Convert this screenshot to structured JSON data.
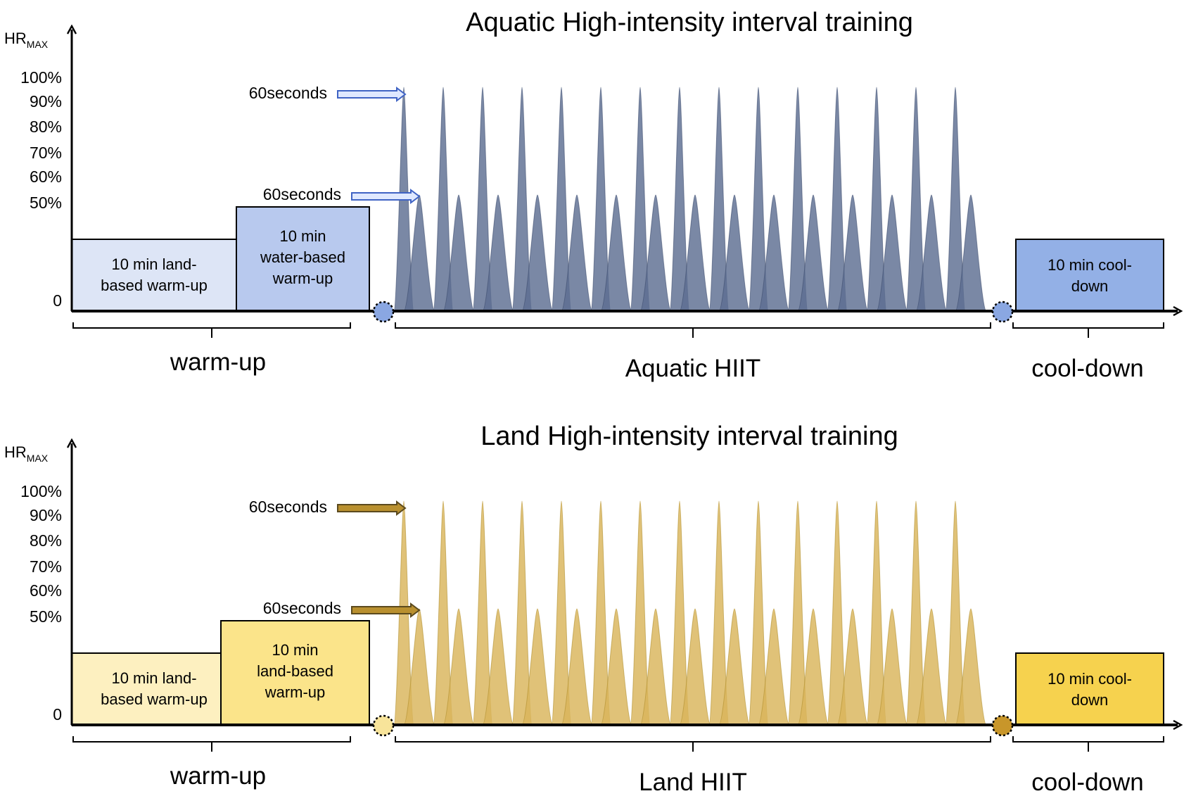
{
  "palette": {
    "aquatic": {
      "spike": "#5d6e91",
      "spike_edge": "#3d4c6e",
      "warm_land_fill": "#dde5f6",
      "warm_water_fill": "#b8c9ee",
      "cool_fill": "#93b0e6",
      "circle": "#8aa7e2",
      "arrow_fill": "#dfe8ff",
      "arrow_edge": "#3f63c4"
    },
    "land": {
      "spike": "#d9b55a",
      "spike_edge": "#b0902f",
      "warm_land_fill": "#fdf0c0",
      "warm_water_fill": "#fbe48a",
      "cool_fill": "#f6d24e",
      "circle": "#f8e49a",
      "circle_end": "#c8962a",
      "arrow_fill": "#b9902f",
      "arrow_edge": "#5b4a1e"
    }
  },
  "panels": [
    {
      "id": "aquatic",
      "title": "Aquatic High-intensity interval training",
      "y_axis": {
        "label_main": "HR",
        "label_sub": "MAX",
        "ticks": [
          "100%",
          "90%",
          "80%",
          "70%",
          "60%",
          "50%",
          "0"
        ]
      },
      "arrows": [
        {
          "label": "60seconds",
          "points_to": "high-intensity"
        },
        {
          "label": "60seconds",
          "points_to": "moderate-intensity"
        }
      ],
      "boxes": {
        "warmup_1": [
          "10 min land-",
          "based warm-up"
        ],
        "warmup_2": [
          "10 min",
          "water-based",
          "warm-up"
        ],
        "cooldown": [
          "10 min cool-",
          "down"
        ]
      },
      "phases": {
        "warmup": "warm-up",
        "main": "Aquatic HIIT",
        "cooldown": "cool-down"
      }
    },
    {
      "id": "land",
      "title": "Land High-intensity interval training",
      "y_axis": {
        "label_main": "HR",
        "label_sub": "MAX",
        "ticks": [
          "100%",
          "90%",
          "80%",
          "70%",
          "60%",
          "50%",
          "0"
        ]
      },
      "arrows": [
        {
          "label": "60seconds",
          "points_to": "high-intensity"
        },
        {
          "label": "60seconds",
          "points_to": "moderate-intensity"
        }
      ],
      "boxes": {
        "warmup_1": [
          "10 min land-",
          "based warm-up"
        ],
        "warmup_2": [
          "10 min",
          "land-based",
          "warm-up"
        ],
        "cooldown": [
          "10 min cool-",
          "down"
        ]
      },
      "phases": {
        "warmup": "warm-up",
        "main": "Land HIIT",
        "cooldown": "cool-down"
      }
    }
  ]
}
